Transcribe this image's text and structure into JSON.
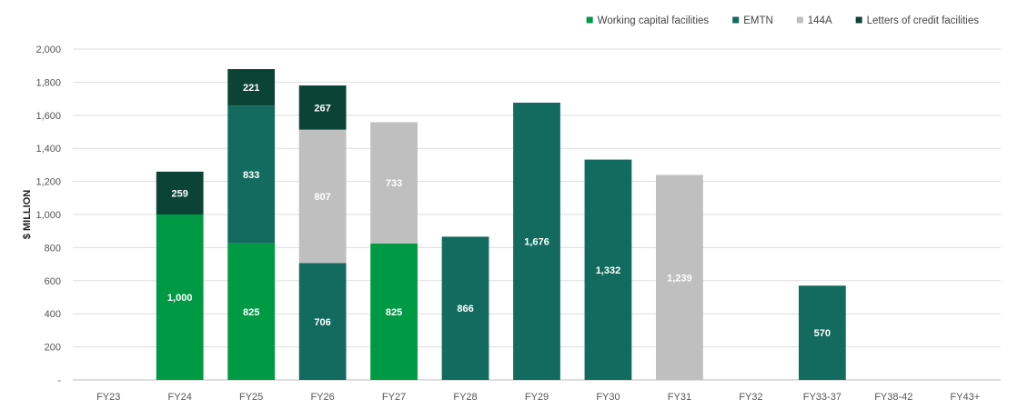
{
  "chart_data": {
    "type": "bar",
    "stacked": true,
    "categories": [
      "FY23",
      "FY24",
      "FY25",
      "FY26",
      "FY27",
      "FY28",
      "FY29",
      "FY30",
      "FY31",
      "FY32",
      "FY33-37",
      "FY38-42",
      "FY43+"
    ],
    "ylabel": "$ MILLION",
    "ylim": [
      0,
      2000
    ],
    "yticks": [
      0,
      200,
      400,
      600,
      800,
      1000,
      1200,
      1400,
      1600,
      1800,
      2000
    ],
    "ytick_labels": [
      "-",
      "200",
      "400",
      "600",
      "800",
      "1,000",
      "1,200",
      "1,400",
      "1,600",
      "1,800",
      "2,000"
    ],
    "grid": true,
    "legend_position": "top-right",
    "series": [
      {
        "name": "Working capital facilities",
        "color": "#009a44",
        "values": [
          0,
          1000,
          825,
          0,
          825,
          0,
          0,
          0,
          0,
          0,
          0,
          0,
          0
        ],
        "labels": [
          "",
          "1,000",
          "825",
          "",
          "825",
          "",
          "",
          "",
          "",
          "",
          "",
          "",
          ""
        ]
      },
      {
        "name": "EMTN",
        "color": "#136b60",
        "values": [
          0,
          0,
          833,
          706,
          0,
          866,
          1676,
          1332,
          0,
          0,
          570,
          0,
          0
        ],
        "labels": [
          "",
          "",
          "833",
          "706",
          "",
          "866",
          "1,676",
          "1,332",
          "",
          "",
          "570",
          "",
          ""
        ]
      },
      {
        "name": "144A",
        "color": "#bfbfbf",
        "values": [
          0,
          0,
          0,
          807,
          733,
          0,
          0,
          0,
          1239,
          0,
          0,
          0,
          0
        ],
        "labels": [
          "",
          "",
          "",
          "807",
          "733",
          "",
          "",
          "",
          "1,239",
          "",
          "",
          "",
          ""
        ]
      },
      {
        "name": "Letters of credit facilities",
        "color": "#0b4437",
        "values": [
          0,
          259,
          221,
          267,
          0,
          0,
          0,
          0,
          0,
          0,
          0,
          0,
          0
        ],
        "labels": [
          "",
          "259",
          "221",
          "267",
          "",
          "",
          "",
          "",
          "",
          "",
          "",
          "",
          ""
        ]
      }
    ]
  }
}
